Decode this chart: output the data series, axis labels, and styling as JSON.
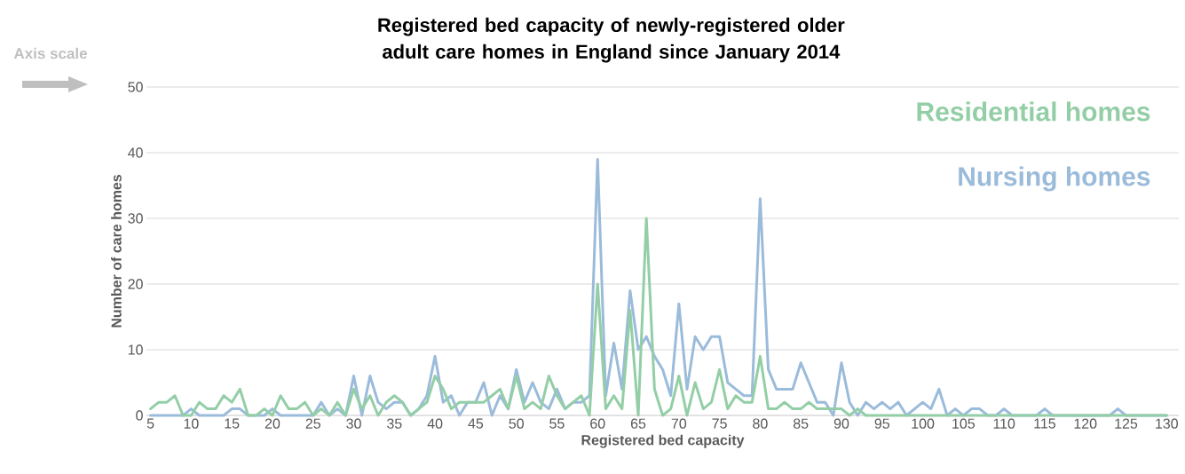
{
  "chart_data": {
    "type": "line",
    "title": "Registered bed capacity of newly-registered older adult care homes in England since January 2014",
    "xlabel": "Registered bed capacity",
    "ylabel": "Number of care homes",
    "annotations": [
      "Axis scale"
    ],
    "x": [
      5,
      6,
      7,
      8,
      9,
      10,
      11,
      12,
      13,
      14,
      15,
      16,
      17,
      18,
      19,
      20,
      21,
      22,
      23,
      24,
      25,
      26,
      27,
      28,
      29,
      30,
      31,
      32,
      33,
      34,
      35,
      36,
      37,
      38,
      39,
      40,
      41,
      42,
      43,
      44,
      45,
      46,
      47,
      48,
      49,
      50,
      51,
      52,
      53,
      54,
      55,
      56,
      57,
      58,
      59,
      60,
      61,
      62,
      63,
      64,
      65,
      66,
      67,
      68,
      69,
      70,
      71,
      72,
      73,
      74,
      75,
      76,
      77,
      78,
      79,
      80,
      81,
      82,
      83,
      84,
      85,
      86,
      87,
      88,
      89,
      90,
      91,
      92,
      93,
      94,
      95,
      96,
      97,
      98,
      99,
      100,
      101,
      102,
      103,
      104,
      105,
      106,
      107,
      108,
      109,
      110,
      111,
      112,
      113,
      114,
      115,
      116,
      117,
      118,
      119,
      120,
      121,
      122,
      123,
      124,
      125,
      126,
      127,
      128,
      129,
      130
    ],
    "series": [
      {
        "name": "Residential homes",
        "color": "#93cea6",
        "values": [
          1,
          2,
          2,
          3,
          0,
          0,
          2,
          1,
          1,
          3,
          2,
          4,
          0,
          0,
          1,
          0,
          3,
          1,
          1,
          2,
          0,
          1,
          0,
          2,
          0,
          4,
          1,
          3,
          0,
          2,
          3,
          2,
          0,
          1,
          2,
          6,
          4,
          1,
          2,
          2,
          2,
          2,
          3,
          4,
          1,
          6,
          1,
          2,
          1,
          6,
          3,
          1,
          2,
          3,
          0,
          20,
          1,
          3,
          1,
          16,
          0,
          30,
          4,
          0,
          1,
          6,
          0,
          5,
          1,
          2,
          7,
          1,
          3,
          2,
          2,
          9,
          1,
          1,
          2,
          1,
          1,
          2,
          1,
          1,
          1,
          1,
          0,
          1,
          0,
          0,
          0,
          0,
          0,
          0,
          0,
          0,
          0,
          0,
          0,
          0,
          0,
          0,
          0,
          0,
          0,
          0,
          0,
          0,
          0,
          0,
          0,
          0,
          0,
          0,
          0,
          0,
          0,
          0,
          0,
          0,
          0,
          0,
          0,
          0,
          0,
          0
        ]
      },
      {
        "name": "Nursing homes",
        "color": "#9bbbdb",
        "values": [
          0,
          0,
          0,
          0,
          0,
          1,
          0,
          0,
          0,
          0,
          1,
          1,
          0,
          0,
          0,
          1,
          0,
          0,
          0,
          0,
          0,
          2,
          0,
          1,
          0,
          6,
          0,
          6,
          2,
          1,
          2,
          2,
          0,
          1,
          3,
          9,
          2,
          3,
          0,
          2,
          2,
          5,
          0,
          3,
          1,
          7,
          2,
          5,
          2,
          1,
          4,
          1,
          2,
          2,
          3,
          39,
          3,
          11,
          4,
          19,
          10,
          12,
          9,
          7,
          3,
          17,
          4,
          12,
          10,
          12,
          12,
          5,
          4,
          3,
          3,
          33,
          7,
          4,
          4,
          4,
          8,
          5,
          2,
          2,
          0,
          8,
          2,
          0,
          2,
          1,
          2,
          1,
          2,
          0,
          1,
          2,
          1,
          4,
          0,
          1,
          0,
          1,
          1,
          0,
          0,
          1,
          0,
          0,
          0,
          0,
          1,
          0,
          0,
          0,
          0,
          0,
          0,
          0,
          0,
          1,
          0,
          0,
          0,
          0,
          0,
          0
        ]
      }
    ],
    "xlim": [
      4.5,
      131.5
    ],
    "ylim": [
      0,
      50
    ],
    "xticks": [
      5,
      10,
      15,
      20,
      25,
      30,
      35,
      40,
      45,
      50,
      55,
      60,
      65,
      70,
      75,
      80,
      85,
      90,
      95,
      100,
      105,
      110,
      115,
      120,
      125,
      130
    ],
    "yticks": [
      0,
      10,
      20,
      30,
      40,
      50
    ],
    "grid": "y",
    "legend": "top right",
    "marker": "none",
    "line_style": "solid"
  }
}
